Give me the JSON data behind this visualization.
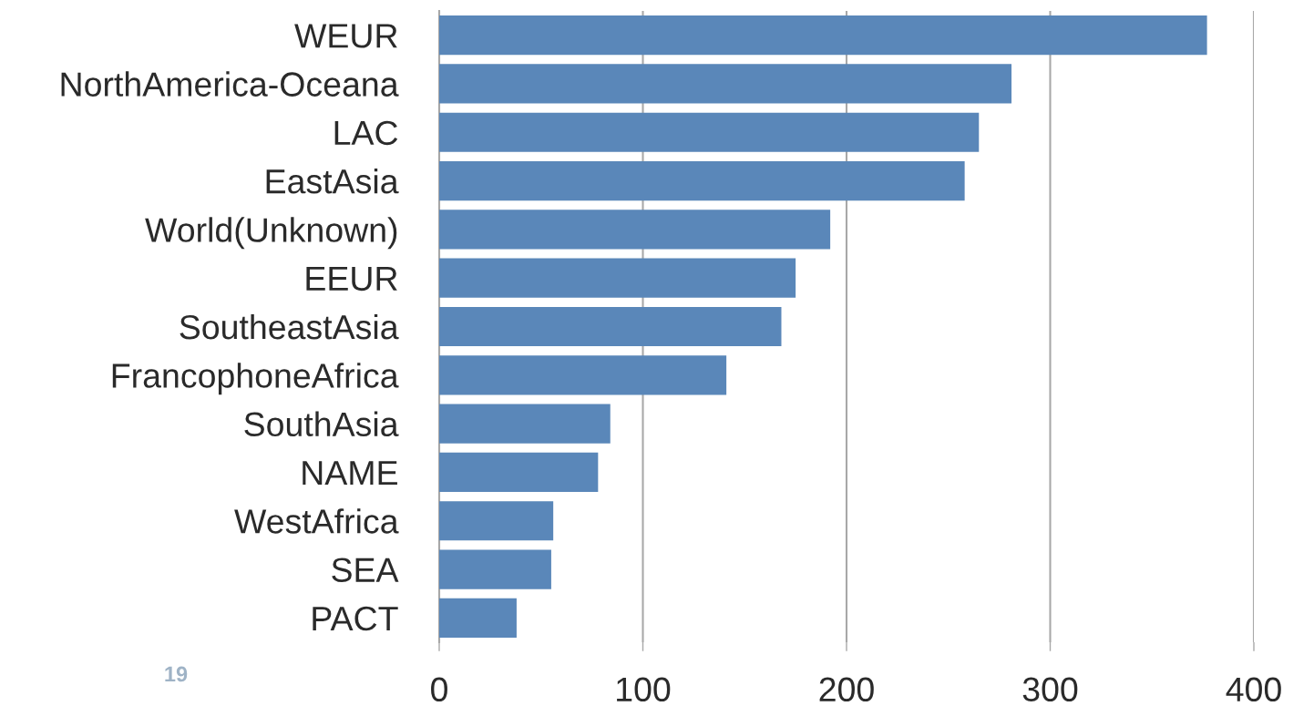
{
  "chart_data": {
    "type": "bar",
    "orientation": "horizontal",
    "categories": [
      "WEUR",
      "NorthAmerica-Oceana",
      "LAC",
      "EastAsia",
      "World(Unknown)",
      "EEUR",
      "SoutheastAsia",
      "FrancophoneAfrica",
      "SouthAsia",
      "NAME",
      "WestAfrica",
      "SEA",
      "PACT"
    ],
    "values": [
      377,
      281,
      265,
      258,
      192,
      175,
      168,
      141,
      84,
      78,
      56,
      55,
      38
    ],
    "color": "#5a87b9",
    "xlim": [
      0,
      400
    ],
    "xticks": [
      0,
      100,
      200,
      300,
      400
    ],
    "grid": "x",
    "annotations": [
      "19"
    ]
  }
}
